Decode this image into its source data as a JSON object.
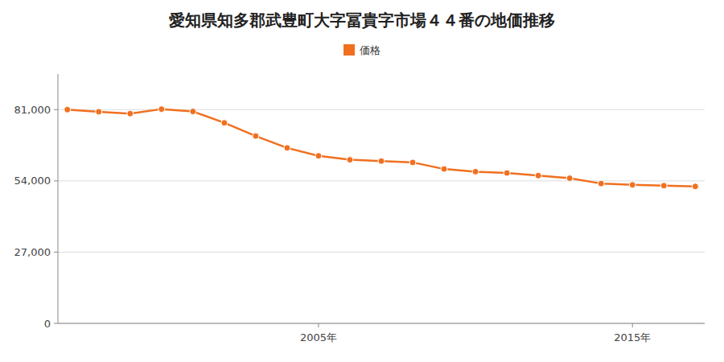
{
  "chart_data": {
    "type": "line",
    "title": "愛知県知多郡武豊町大字冨貴字市場４４番の地価推移",
    "x": [
      1997,
      1998,
      1999,
      2000,
      2001,
      2002,
      2003,
      2004,
      2005,
      2006,
      2007,
      2008,
      2009,
      2010,
      2011,
      2012,
      2013,
      2014,
      2015,
      2016,
      2017
    ],
    "series": [
      {
        "name": "価格",
        "color": "#f07020",
        "marker": "circle",
        "values": [
          81000,
          80200,
          79500,
          81200,
          80300,
          76000,
          71000,
          66500,
          63500,
          62000,
          61500,
          61000,
          58500,
          57500,
          57000,
          56000,
          55000,
          53000,
          52500,
          52200,
          51900
        ]
      }
    ],
    "xlim": [
      1996.7,
      2017.3
    ],
    "xticks": [
      {
        "value": 2005,
        "label": "2005年"
      },
      {
        "value": 2015,
        "label": "2015年"
      }
    ],
    "ylim": [
      0,
      94500
    ],
    "yticks": [
      0,
      {
        "value": 27000,
        "label": "27,000"
      },
      {
        "value": 54000,
        "label": "54,000"
      },
      {
        "value": 81000,
        "label": "81,000"
      }
    ],
    "grid": true,
    "legend": "top"
  }
}
